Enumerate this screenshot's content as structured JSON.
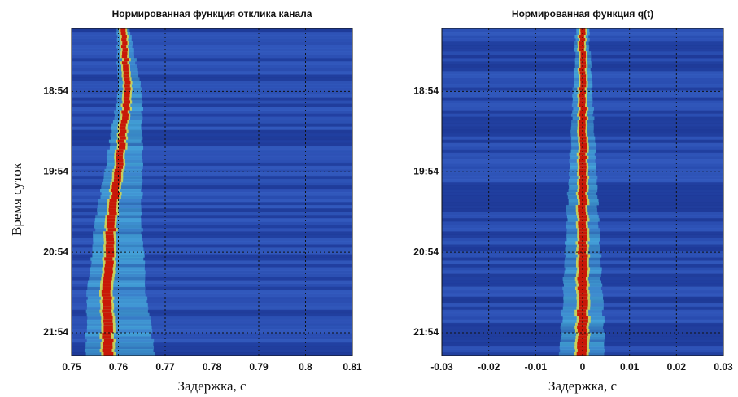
{
  "chart_data": [
    {
      "type": "heatmap",
      "title": "Нормированная функция отклика канала",
      "xlabel": "Задержка, с",
      "ylabel": "Время суток",
      "xlim": [
        0.75,
        0.81
      ],
      "xticks": [
        0.75,
        0.76,
        0.77,
        0.78,
        0.79,
        0.8,
        0.81
      ],
      "ylim": [
        "18:07",
        "22:11"
      ],
      "yticks": [
        "18:54",
        "19:54",
        "20:54",
        "21:54"
      ],
      "grid": true
    },
    {
      "type": "heatmap",
      "title": "Нормированная функция q(t)",
      "xlabel": "Задержка, с",
      "xlim": [
        -0.03,
        0.03
      ],
      "xticks": [
        -0.03,
        -0.02,
        -0.01,
        0,
        0.01,
        0.02,
        0.03
      ],
      "ylim": [
        "18:07",
        "22:11"
      ],
      "yticks": [
        "18:54",
        "19:54",
        "20:54",
        "21:54"
      ],
      "grid": true
    }
  ]
}
